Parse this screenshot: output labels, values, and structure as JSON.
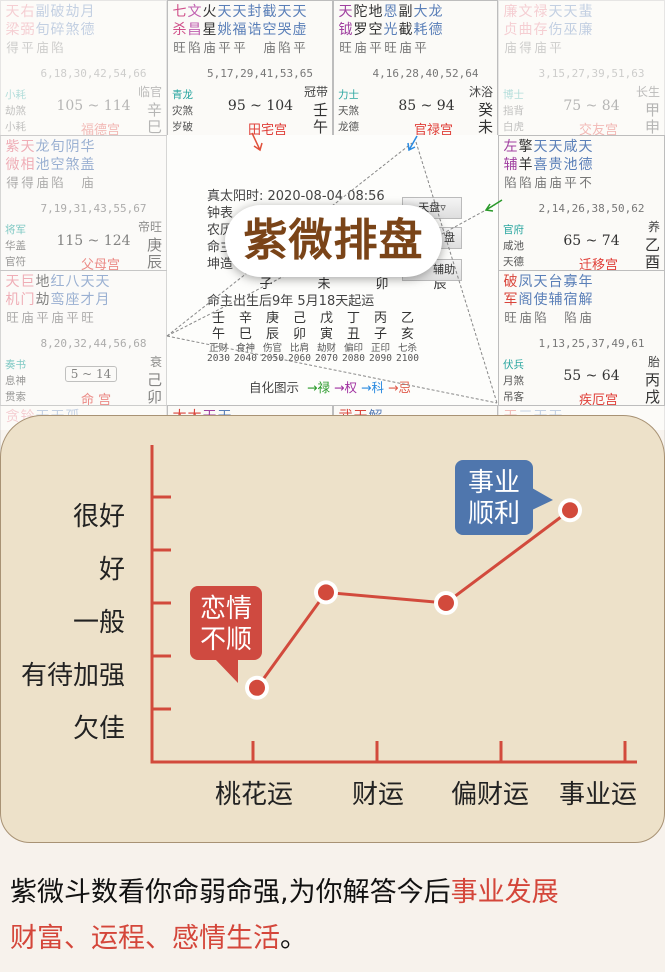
{
  "palaces": [
    {
      "id": "fude",
      "fade": "faded",
      "stars": [
        [
          "天",
          "梁",
          "得",
          "#e77a8a"
        ],
        [
          "右",
          "弼",
          "平",
          "#e77a8a"
        ],
        [
          "副",
          "旬",
          "庙",
          "#5a7fb8"
        ],
        [
          "破",
          "碎",
          "陷",
          "#5a7fb8"
        ],
        [
          "劫",
          "煞",
          "",
          "#5a7fb8"
        ],
        [
          "月",
          "德",
          "",
          "#5a7fb8"
        ]
      ],
      "ages": "6,18,30,42,54,66",
      "gods": [
        "小耗",
        "劫煞",
        "小耗"
      ],
      "range": "105 ~ 114",
      "cs": "临官",
      "stem": "辛",
      "branch": "巳",
      "palace": "福德宫"
    },
    {
      "id": "tianzhai",
      "fade": "",
      "stars": [
        [
          "七",
          "杀",
          "旺",
          "#d0508a"
        ],
        [
          "文",
          "昌",
          "陷",
          "#c060b0"
        ],
        [
          "火",
          "星",
          "庙",
          "#333"
        ],
        [
          "天",
          "姚",
          "平",
          "#5a7fb8"
        ],
        [
          "天",
          "福",
          "平",
          "#5a7fb8"
        ],
        [
          "封",
          "诰",
          "",
          "#5a7fb8"
        ],
        [
          "截",
          "空",
          "庙",
          "#5a7fb8"
        ],
        [
          "天",
          "哭",
          "陷",
          "#5a7fb8"
        ],
        [
          "天",
          "虚",
          "平",
          "#5a7fb8"
        ]
      ],
      "ages": "5,17,29,41,53,65",
      "gods": [
        "青龙",
        "灾煞",
        "岁破"
      ],
      "range": "95 ~ 104",
      "cs": "冠带",
      "stem": "壬",
      "branch": "午",
      "palace": "田宅宫"
    },
    {
      "id": "guanlu",
      "fade": "",
      "stars": [
        [
          "天",
          "钺",
          "旺",
          "#a040a0"
        ],
        [
          "陀",
          "罗",
          "庙",
          "#333"
        ],
        [
          "地",
          "空",
          "平",
          "#333"
        ],
        [
          "恩",
          "光",
          "旺",
          "#5a7fb8"
        ],
        [
          "副",
          "截",
          "庙",
          "#333"
        ],
        [
          "大",
          "耗",
          "平",
          "#5a7fb8"
        ],
        [
          "龙",
          "德",
          "",
          "#5a7fb8"
        ]
      ],
      "ages": "4,16,28,40,52,64",
      "gods": [
        "力士",
        "天煞",
        "龙德"
      ],
      "range": "85 ~ 94",
      "cs": "沐浴",
      "stem": "癸",
      "branch": "未",
      "palace": "官禄宫"
    },
    {
      "id": "jiaoyou",
      "fade": "faded",
      "stars": [
        [
          "廉",
          "贞",
          "庙",
          "#e77a8a"
        ],
        [
          "文",
          "曲",
          "得",
          "#e77a8a"
        ],
        [
          "禄",
          "存",
          "庙",
          "#e77a8a"
        ],
        [
          "天",
          "伤",
          "平",
          "#5a7fb8"
        ],
        [
          "天",
          "巫",
          "",
          "#5a7fb8"
        ],
        [
          "蜚",
          "廉",
          "",
          "#5a7fb8"
        ]
      ],
      "ages": "3,15,27,39,51,63",
      "gods": [
        "博士",
        "指背",
        "白虎"
      ],
      "range": "75 ~ 84",
      "cs": "长生",
      "stem": "甲",
      "branch": "申",
      "palace": "交友宫"
    },
    {
      "id": "fumu",
      "fade": "semi",
      "stars": [
        [
          "紫",
          "微",
          "得",
          "#e77a8a"
        ],
        [
          "天",
          "相",
          "得",
          "#e77a8a"
        ],
        [
          "龙",
          "池",
          "庙",
          "#5a7fb8"
        ],
        [
          "旬",
          "空",
          "陷",
          "#5a7fb8"
        ],
        [
          "阴",
          "煞",
          "",
          "#5a7fb8"
        ],
        [
          "华",
          "盖",
          "庙",
          "#5a7fb8"
        ]
      ],
      "ages": "7,19,31,43,55,67",
      "gods": [
        "将军",
        "华盖",
        "官符"
      ],
      "range": "115 ~ 124",
      "cs": "帝旺",
      "stem": "庚",
      "branch": "辰",
      "palace": "父母宫"
    },
    {
      "id": "qianyi",
      "fade": "",
      "stars": [
        [
          "左",
          "辅",
          "陷",
          "#a040a0"
        ],
        [
          "擎",
          "羊",
          "陷",
          "#333"
        ],
        [
          "天",
          "喜",
          "庙",
          "#5a7fb8"
        ],
        [
          "天",
          "贵",
          "庙",
          "#5a7fb8"
        ],
        [
          "咸",
          "池",
          "平",
          "#5a7fb8"
        ],
        [
          "天",
          "德",
          "不",
          "#5a7fb8"
        ]
      ],
      "ages": "2,14,26,38,50,62",
      "gods": [
        "官府",
        "咸池",
        "天德"
      ],
      "range": "65 ~ 74",
      "cs": "养",
      "stem": "乙",
      "branch": "酉",
      "palace": "迁移宫"
    },
    {
      "id": "ming",
      "fade": "semi",
      "stars": [
        [
          "天",
          "机",
          "旺",
          "#e77a8a"
        ],
        [
          "巨",
          "门",
          "庙",
          "#e77a8a"
        ],
        [
          "地",
          "劫",
          "平",
          "#333"
        ],
        [
          "红",
          "鸾",
          "庙",
          "#5a7fb8"
        ],
        [
          "八",
          "座",
          "平",
          "#5a7fb8"
        ],
        [
          "天",
          "才",
          "旺",
          "#5a7fb8"
        ],
        [
          "天",
          "月",
          "",
          "#5a7fb8"
        ]
      ],
      "ages": "8,20,32,44,56,68",
      "gods": [
        "奏书",
        "息神",
        "贯索"
      ],
      "range": "5 ~ 14",
      "cs": "衰",
      "stem": "己",
      "branch": "卯",
      "palace": "命 宫"
    },
    {
      "id": "jie",
      "fade": "",
      "stars": [
        [
          "破",
          "军",
          "旺",
          "#d9443a"
        ],
        [
          "凤",
          "阁",
          "庙",
          "#5a7fb8"
        ],
        [
          "天",
          "使",
          "陷",
          "#5a7fb8"
        ],
        [
          "台",
          "辅",
          "",
          "#5a7fb8"
        ],
        [
          "寡",
          "宿",
          "陷",
          "#5a7fb8"
        ],
        [
          "年",
          "解",
          "庙",
          "#5a7fb8"
        ]
      ],
      "ages": "1,13,25,37,49,61",
      "gods": [
        "伏兵",
        "月煞",
        "吊客"
      ],
      "range": "55 ~ 64",
      "cs": "胎",
      "stem": "丙",
      "branch": "戌",
      "palace": "疾厄宫"
    },
    {
      "id": "b0",
      "fade": "faded",
      "stars": [
        [
          "贪",
          "",
          "",
          "#e77a8a"
        ],
        [
          "铃",
          "",
          "",
          "#e77a8a"
        ],
        [
          "天",
          "",
          "",
          "#5a7fb8"
        ],
        [
          "天",
          "",
          "",
          "#5a7fb8"
        ],
        [
          "孤",
          "",
          "",
          "#5a7fb8"
        ]
      ]
    },
    {
      "id": "b1",
      "fade": "",
      "stars": [
        [
          "太",
          "",
          "",
          "#d9443a"
        ],
        [
          "太",
          "",
          "",
          "#d9443a"
        ],
        [
          "天",
          "",
          "",
          "#a040a0"
        ],
        [
          "天",
          "",
          "",
          "#5a7fb8"
        ]
      ]
    },
    {
      "id": "b2",
      "fade": "",
      "stars": [
        [
          "武",
          "",
          "",
          "#d9443a"
        ],
        [
          "天",
          "",
          "",
          "#d9443a"
        ],
        [
          "解",
          "",
          "",
          "#5a7fb8"
        ]
      ]
    },
    {
      "id": "b3",
      "fade": "faded",
      "stars": [
        [
          "天",
          "",
          "",
          "#d9443a"
        ],
        [
          "三",
          "",
          "",
          "#5a7fb8"
        ],
        [
          "天",
          "",
          "",
          "#5a7fb8"
        ],
        [
          "天",
          "",
          "",
          "#5a7fb8"
        ]
      ]
    }
  ],
  "center": {
    "lines": [
      "真太阳时: 2020-08-04 08:56",
      "钟表",
      "农历",
      "命主",
      "坤造"
    ],
    "pillar_branches": [
      "子",
      "未",
      "卯",
      "辰"
    ],
    "qiyun": "命主出生后9年 5月18天起运",
    "stems": [
      "壬",
      "辛",
      "庚",
      "己",
      "戊",
      "丁",
      "丙",
      "乙"
    ],
    "branches": [
      "午",
      "巳",
      "辰",
      "卯",
      "寅",
      "丑",
      "子",
      "亥"
    ],
    "shishen": [
      "正财",
      "食神",
      "伤官",
      "比肩",
      "劫财",
      "偏印",
      "正印",
      "七杀"
    ],
    "years": [
      "2030",
      "2040",
      "2050",
      "2060",
      "2070",
      "2080",
      "2090",
      "2100"
    ],
    "legend_label": "自化图示",
    "legend": [
      {
        "t": "→禄",
        "c": "#2a9a2a"
      },
      {
        "t": "→权",
        "c": "#a030a0"
      },
      {
        "t": "→科",
        "c": "#2a8ae0"
      },
      {
        "t": "→忌",
        "c": "#e05a4a"
      }
    ],
    "buttons": [
      "天盘▿",
      "盘",
      "辅助"
    ],
    "title": "紫微排盘"
  },
  "chart_data": {
    "type": "line",
    "categories": [
      "桃花运",
      "财运",
      "偏财运",
      "事业运"
    ],
    "y_levels": [
      "欠佳",
      "有待加强",
      "一般",
      "好",
      "很好"
    ],
    "values": [
      1.4,
      3.2,
      3.0,
      4.75
    ],
    "callouts": [
      {
        "text": [
          "恋情",
          "不顺"
        ],
        "point": 0,
        "color": "#cf4a40"
      },
      {
        "text": [
          "事业",
          "顺利"
        ],
        "point": 3,
        "color": "#4f76ad"
      }
    ],
    "colors": {
      "axis": "#d24a3c",
      "line": "#d24a3c",
      "point": "#d24a3c"
    },
    "grid": false
  },
  "footer": {
    "normal": "紫微斗数看你命弱命强,为你解答今后",
    "highlight1": "事业发展",
    "highlight2": "财富、运程、感情生活",
    "end": "。"
  }
}
